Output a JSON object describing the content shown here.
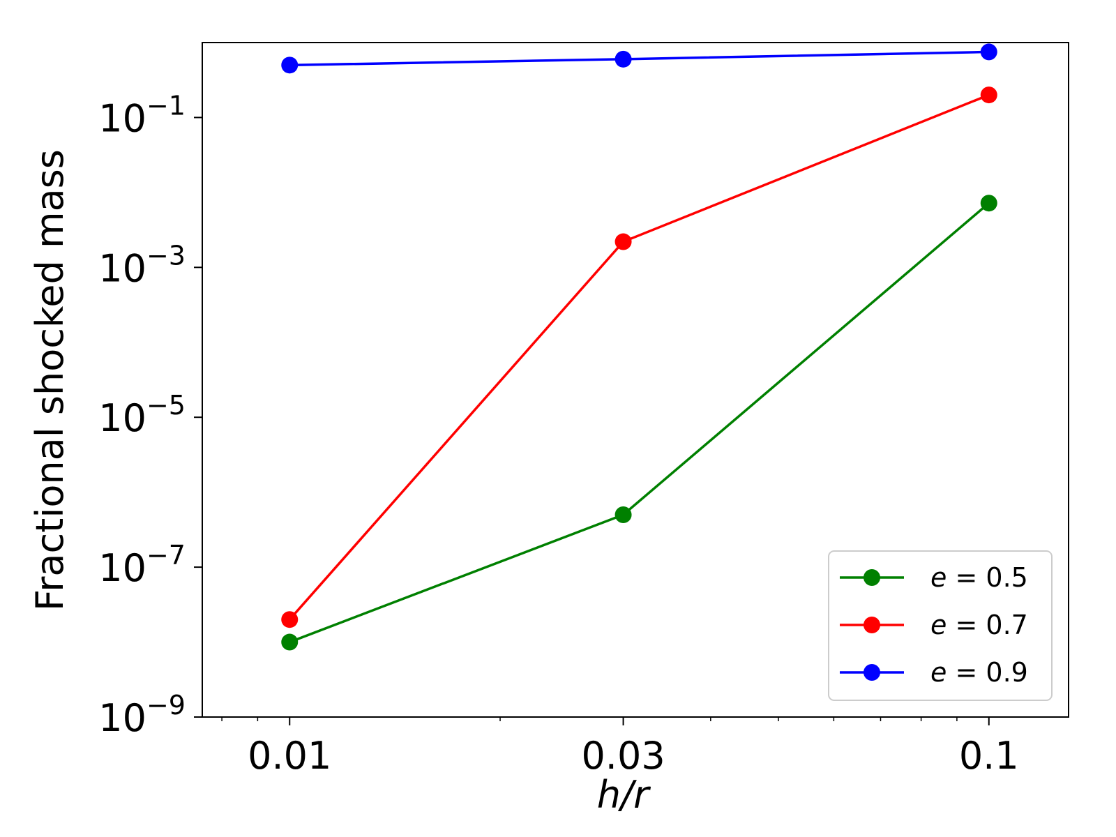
{
  "chart_data": {
    "type": "line",
    "xscale": "log",
    "yscale": "log",
    "xlabel": "h/r",
    "ylabel": "Fractional shocked mass",
    "xlim": [
      0.0075,
      0.13
    ],
    "ylim": [
      1e-09,
      1
    ],
    "x": [
      0.01,
      0.03,
      0.1
    ],
    "xticks": [
      {
        "value": 0.01,
        "label": "0.01"
      },
      {
        "value": 0.03,
        "label": "0.03"
      },
      {
        "value": 0.1,
        "label": "0.1"
      }
    ],
    "yticks": [
      {
        "value": 1e-09,
        "base": "10",
        "exp": "−9"
      },
      {
        "value": 1e-07,
        "base": "10",
        "exp": "−7"
      },
      {
        "value": 1e-05,
        "base": "10",
        "exp": "−5"
      },
      {
        "value": 0.001,
        "base": "10",
        "exp": "−3"
      },
      {
        "value": 0.1,
        "base": "10",
        "exp": "−1"
      }
    ],
    "series": [
      {
        "name": "e = 0.5",
        "var": "e",
        "rel": " = 0.5",
        "color": "#008000",
        "values": [
          1e-08,
          5e-07,
          0.0072
        ]
      },
      {
        "name": "e = 0.7",
        "var": "e",
        "rel": " = 0.7",
        "color": "#ff0000",
        "values": [
          2e-08,
          0.0022,
          0.2
        ]
      },
      {
        "name": "e = 0.9",
        "var": "e",
        "rel": " = 0.9",
        "color": "#0000ff",
        "values": [
          0.5,
          0.6,
          0.75
        ]
      }
    ],
    "legend": "lower-right",
    "grid": false
  }
}
